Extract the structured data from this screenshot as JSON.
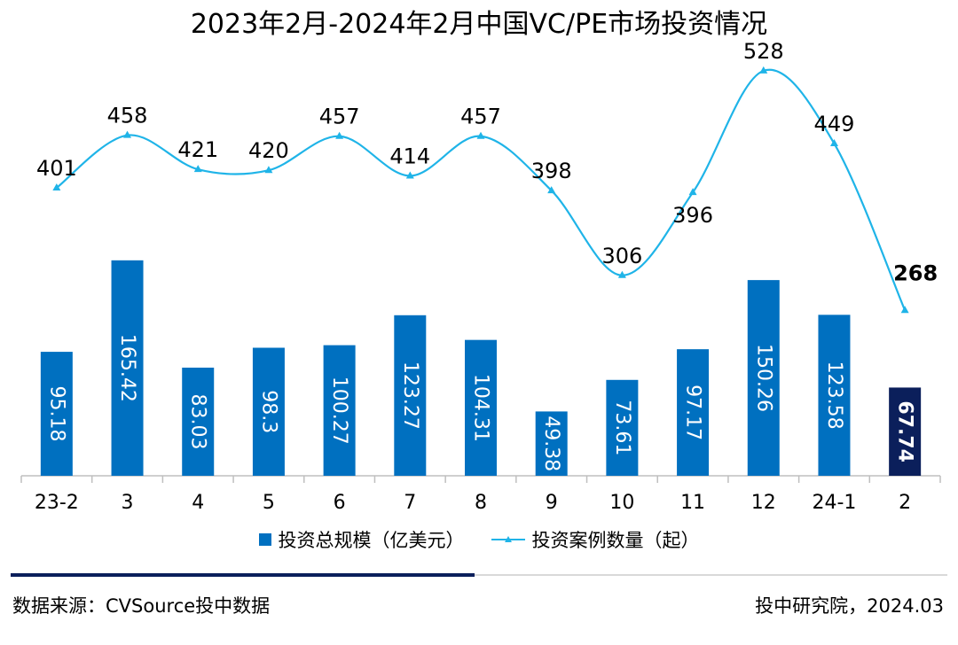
{
  "title": "2023年2月-2024年2月中国VC/PE市场投资情况",
  "chart_data": {
    "type": "bar",
    "categories": [
      "23-2",
      "3",
      "4",
      "5",
      "6",
      "7",
      "8",
      "9",
      "10",
      "11",
      "12",
      "24-1",
      "2"
    ],
    "series": [
      {
        "name": "投资总规模（亿美元）",
        "kind": "bar",
        "values": [
          95.18,
          165.42,
          83.03,
          98.3,
          100.27,
          123.27,
          104.31,
          49.38,
          73.61,
          97.17,
          150.26,
          123.58,
          67.74
        ],
        "color": "#0070c0",
        "highlight_color": "#0b1f5b",
        "highlight_index": 12
      },
      {
        "name": "投资案例数量（起）",
        "kind": "line",
        "values": [
          401,
          458,
          421,
          420,
          457,
          414,
          457,
          398,
          306,
          396,
          528,
          449,
          268
        ],
        "color": "#1fb4e8"
      }
    ],
    "legend_position": "bottom"
  },
  "legend": {
    "bar_label": "投资总规模（亿美元）",
    "line_label": "投资案例数量（起）"
  },
  "footer": {
    "source": "数据来源：CVSource投中数据",
    "credit": "投中研究院，2024.03"
  }
}
